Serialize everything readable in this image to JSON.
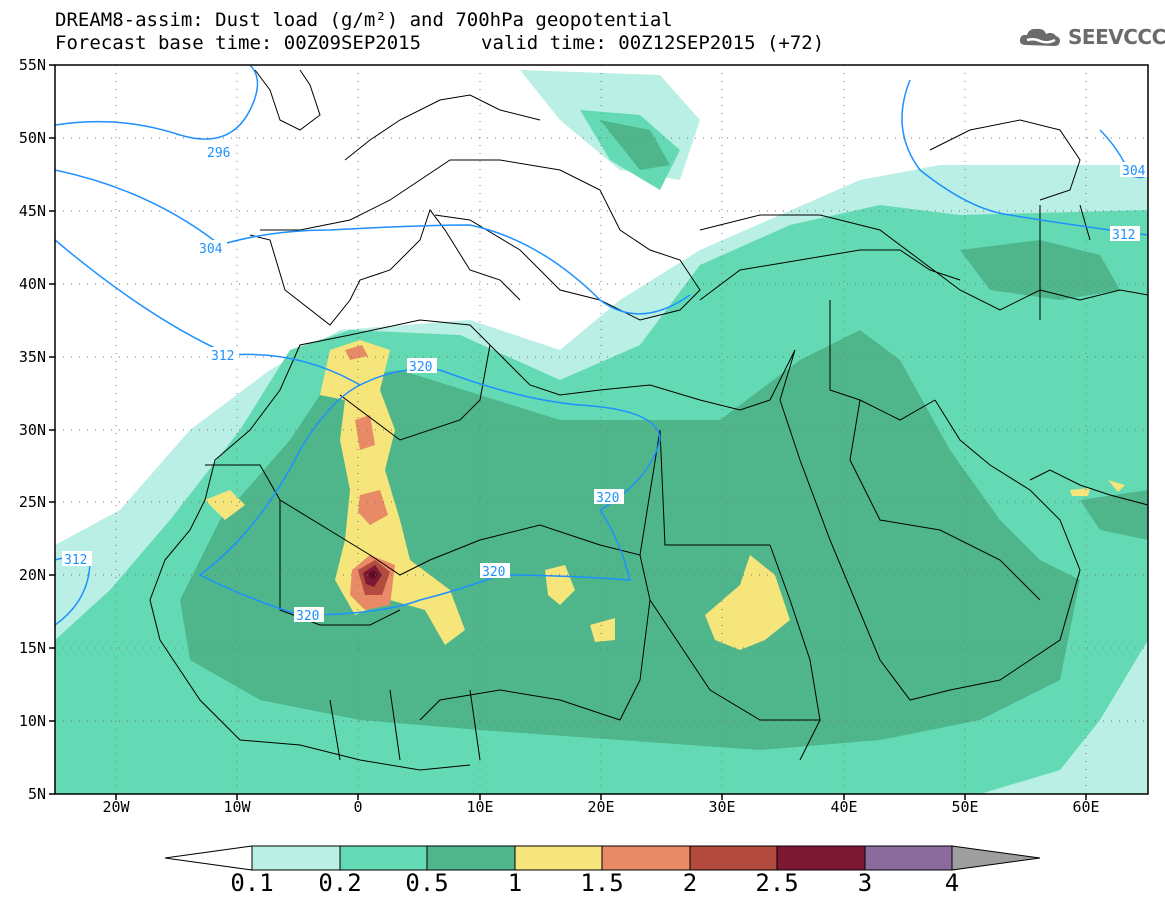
{
  "header": {
    "title_line1": "DREAM8-assim: Dust load (g/m²) and 700hPa geopotential",
    "forecast_base": "Forecast base time: 00Z09SEP2015",
    "valid_time": "valid time: 00Z12SEP2015 (+72)"
  },
  "logo": {
    "text": "SEEVCCC",
    "icon": "cloud-icon"
  },
  "axes": {
    "lat_labels": [
      "55N",
      "50N",
      "45N",
      "40N",
      "35N",
      "30N",
      "25N",
      "20N",
      "15N",
      "10N",
      "5N"
    ],
    "lon_labels": [
      "20W",
      "10W",
      "0",
      "10E",
      "20E",
      "30E",
      "40E",
      "50E",
      "60E"
    ]
  },
  "contour_labels": [
    "296",
    "304",
    "312",
    "320",
    "320",
    "320",
    "320",
    "312",
    "304",
    "312"
  ],
  "colorbar": {
    "labels": [
      "0.1",
      "0.2",
      "0.5",
      "1",
      "1.5",
      "2",
      "2.5",
      "3",
      "4"
    ],
    "colors": [
      "#ffffff",
      "#b9efe4",
      "#63dab3",
      "#4fb68c",
      "#f5e57a",
      "#e88a66",
      "#b24a3e",
      "#7d1834",
      "#8b6b9e",
      "#9e9e9e"
    ]
  },
  "colors": {
    "contour": "#1e90ff",
    "border": "#000000"
  }
}
